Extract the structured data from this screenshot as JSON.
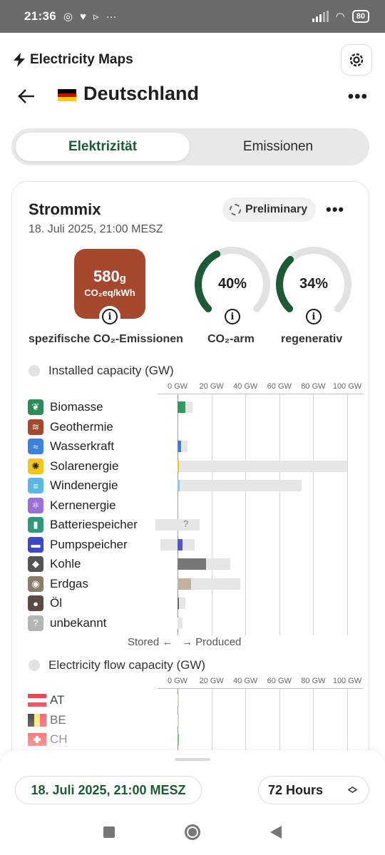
{
  "status_bar": {
    "time": "21:36",
    "battery": "80"
  },
  "app": {
    "brand": "Electricity Maps"
  },
  "header": {
    "title": "Deutschland"
  },
  "tabs": [
    {
      "label": "Elektrizität",
      "active": true
    },
    {
      "label": "Emissionen",
      "active": false
    }
  ],
  "card": {
    "title": "Strommix",
    "date": "18. Juli 2025, 21:00 MESZ",
    "badge": "Preliminary",
    "co2": {
      "value": "580",
      "value_unit": "g",
      "unit_line": "CO₂eq/kWh",
      "label": "spezifische CO₂-Emissionen",
      "color": "#a5482e"
    },
    "low_carbon": {
      "percent": "40%",
      "fraction": 0.4,
      "label": "CO₂-arm"
    },
    "renewable": {
      "percent": "34%",
      "fraction": 0.34,
      "label": "regenerativ"
    }
  },
  "installed_capacity": {
    "heading": "Installed capacity (GW)",
    "ticks": [
      "0 GW",
      "20 GW",
      "40 GW",
      "60 GW",
      "80 GW",
      "100 GW"
    ],
    "axis_max_gw": 100,
    "rows": [
      {
        "name": "Biomasse",
        "icon": "leaf-icon",
        "icon_color": "#2e8b57",
        "bar_color": "#2e9a5c",
        "capacity": 9,
        "value": 4.5
      },
      {
        "name": "Geothermie",
        "icon": "geothermal-icon",
        "icon_color": "#a5482e",
        "bar_color": "#a5482e",
        "capacity": 0,
        "value": 0
      },
      {
        "name": "Wasserkraft",
        "icon": "water-icon",
        "icon_color": "#3b82e0",
        "bar_color": "#3b82e0",
        "capacity": 6,
        "value": 2
      },
      {
        "name": "Solarenergie",
        "icon": "sun-icon",
        "icon_color": "#f4c51a",
        "bar_color": "#f4c51a",
        "capacity": 100,
        "value": 0.5
      },
      {
        "name": "Windenergie",
        "icon": "wind-icon",
        "icon_color": "#5bb8e6",
        "bar_color": "#7ccaf0",
        "capacity": 73,
        "value": 1.3
      },
      {
        "name": "Kernenergie",
        "icon": "atom-icon",
        "icon_color": "#9b6fd6",
        "bar_color": "#9b6fd6",
        "capacity": 0,
        "value": 0
      },
      {
        "name": "Batteriespeicher",
        "icon": "battery-icon",
        "icon_color": "#2e9a7c",
        "bar_color": "#2e9a7c",
        "capacity": 13,
        "value": 0,
        "stored_capacity": 13,
        "unknown_mark": "?"
      },
      {
        "name": "Pumpspeicher",
        "icon": "pump-storage-icon",
        "icon_color": "#3d48c6",
        "bar_color": "#4f55d4",
        "capacity": 10,
        "value": 3,
        "stored_capacity": 10
      },
      {
        "name": "Kohle",
        "icon": "coal-icon",
        "icon_color": "#555555",
        "bar_color": "#777777",
        "capacity": 31,
        "value": 17
      },
      {
        "name": "Erdgas",
        "icon": "gas-icon",
        "icon_color": "#8a7d6a",
        "bar_color": "#bfb3a0",
        "capacity": 37,
        "value": 8
      },
      {
        "name": "Öl",
        "icon": "oil-icon",
        "icon_color": "#5b4a45",
        "bar_color": "#666666",
        "capacity": 4.5,
        "value": 0.5
      },
      {
        "name": "unbekannt",
        "icon": "unknown-icon",
        "icon_color": "#b5b5b5",
        "bar_color": "#b5b5b5",
        "capacity": 3,
        "value": 0,
        "icon_glyph": "?"
      }
    ],
    "stored_label": "Stored",
    "produced_label": "Produced"
  },
  "flow_capacity": {
    "heading": "Electricity flow capacity (GW)",
    "ticks": [
      "0 GW",
      "20 GW",
      "40 GW",
      "60 GW",
      "80 GW",
      "100 GW"
    ],
    "rows": [
      {
        "code": "AT",
        "flag": "flag-austria-icon",
        "value": 0.5,
        "bar_color": "#ddd6c8"
      },
      {
        "code": "BE",
        "flag": "flag-belgium-icon",
        "value": 1,
        "bar_color": "#ddd6c8"
      },
      {
        "code": "CH",
        "flag": "flag-switzerland-icon",
        "value": 0.7,
        "bar_color": "#7fbf8a"
      }
    ]
  },
  "bottom_sheet": {
    "date": "18. Juli 2025, 21:00 MESZ",
    "range": "72 Hours"
  }
}
